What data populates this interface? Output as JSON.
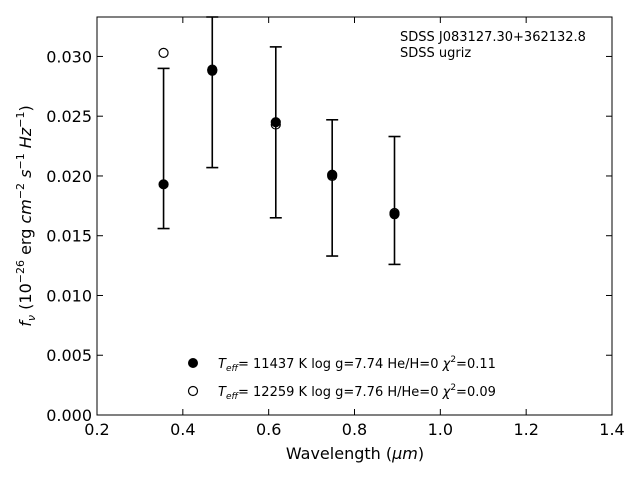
{
  "chart_data": {
    "type": "scatter",
    "title": "",
    "xlabel_main": "Wavelength (",
    "xlabel_unit": "μm",
    "xlabel_close": ")",
    "ylabel": "f_ν (10^-26 erg cm^-2 s^-1 Hz^-1)",
    "xlim": [
      0.2,
      1.4
    ],
    "ylim": [
      0.0,
      0.0333
    ],
    "xticks": [
      "0.2",
      "0.4",
      "0.6",
      "0.8",
      "1.0",
      "1.2",
      "1.4"
    ],
    "xtick_values": [
      0.2,
      0.4,
      0.6,
      0.8,
      1.0,
      1.2,
      1.4
    ],
    "yticks": [
      "0.000",
      "0.005",
      "0.010",
      "0.015",
      "0.020",
      "0.025",
      "0.030"
    ],
    "ytick_values": [
      0.0,
      0.005,
      0.01,
      0.015,
      0.02,
      0.025,
      0.03
    ],
    "grid": false,
    "annotations": [
      "SDSS J083127.30+362132.8",
      "SDSS ugriz"
    ],
    "observed": {
      "x": [
        0.3551,
        0.4686,
        0.6166,
        0.748,
        0.8932
      ],
      "y": [
        0.0193,
        0.0287,
        0.0244,
        0.0201,
        0.0167
      ],
      "yerr_low": [
        0.0156,
        0.0207,
        0.0165,
        0.0133,
        0.0126
      ],
      "yerr_high": [
        0.029,
        0.0333,
        0.0308,
        0.0247,
        0.0233
      ]
    },
    "series": [
      {
        "name": "T_eff= 11437 K  log g=7.74  He/H=0  χ²=0.11",
        "marker": "filled",
        "x": [
          0.3551,
          0.4686,
          0.6166,
          0.748,
          0.8932
        ],
        "values": [
          0.0193,
          0.0288,
          0.0245,
          0.0201,
          0.0168
        ]
      },
      {
        "name": "T_eff= 12259 K  log g=7.76  H/He=0  χ²=0.09",
        "marker": "open",
        "x": [
          0.3551,
          0.4686,
          0.6166,
          0.748,
          0.8932
        ],
        "values": [
          0.0303,
          0.0289,
          0.0243,
          0.02,
          0.0169
        ]
      }
    ],
    "legend": {
      "placement": "bottom-center",
      "entries": [
        {
          "teff": "11437 K",
          "logg": "log g=7.74",
          "comp": "He/H=0",
          "chi": "=0.11"
        },
        {
          "teff": "12259 K",
          "logg": "log g=7.76",
          "comp": "H/He=0",
          "chi": "=0.09"
        }
      ]
    }
  }
}
